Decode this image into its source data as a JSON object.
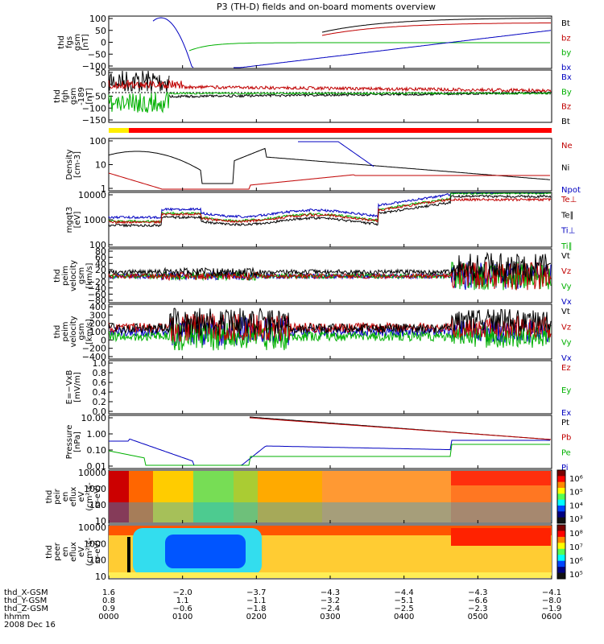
{
  "chart_data": {
    "type": "line",
    "title": "P3 (TH-D) fields and on-board moments overview",
    "panels": [
      {
        "id": "fgs",
        "ylabel_lines": [
          "thd",
          "fgs",
          "gsm",
          "[nT]"
        ],
        "ylim": [
          -100,
          100
        ],
        "yticks": [
          "100",
          "50",
          "0",
          "−50",
          "−100"
        ],
        "legend": [
          {
            "label": "Bt",
            "color": "#000000"
          },
          {
            "label": "bz",
            "color": "#c00000"
          },
          {
            "label": "by",
            "color": "#00b000"
          },
          {
            "label": "bx",
            "color": "#0000c0"
          }
        ]
      },
      {
        "id": "fgh",
        "ylabel_lines": [
          "thd",
          "fgh",
          "gsm",
          "-189",
          "[nT]"
        ],
        "ylim": [
          -175,
          50
        ],
        "yticks": [
          "50",
          "0",
          "−50",
          "−100",
          "−150"
        ],
        "legend": [
          {
            "label": "Bx",
            "color": "#0000c0"
          },
          {
            "label": "By",
            "color": "#00b000"
          },
          {
            "label": "Bz",
            "color": "#c00000"
          },
          {
            "label": "Bt",
            "color": "#000000"
          }
        ]
      },
      {
        "id": "density",
        "ylabel_lines": [
          "Density",
          "[cm-3]"
        ],
        "ylim": [
          0.1,
          100
        ],
        "log": true,
        "yticks": [
          "100",
          "10",
          "1"
        ],
        "legend": [
          {
            "label": "Ne",
            "color": "#c00000"
          },
          {
            "label": "Ni",
            "color": "#000000"
          },
          {
            "label": "Npot",
            "color": "#0000c0"
          }
        ]
      },
      {
        "id": "temp",
        "ylabel_lines": [
          "mgqt3",
          "[eV]"
        ],
        "ylim": [
          50,
          10000
        ],
        "log": true,
        "yticks": [
          "10000",
          "1000",
          "100"
        ],
        "legend": [
          {
            "label": "Te⊥",
            "color": "#c00000"
          },
          {
            "label": "Te∥",
            "color": "#000000"
          },
          {
            "label": "Ti⊥",
            "color": "#0000c0"
          },
          {
            "label": "Ti∥",
            "color": "#00b000"
          }
        ]
      },
      {
        "id": "vperp",
        "ylabel_lines": [
          "thd",
          "peim",
          "velocity",
          "gsm",
          "[km/s]"
        ],
        "ylim": [
          -80,
          80
        ],
        "yticks": [
          "80",
          "60",
          "40",
          "20",
          "0",
          "−20",
          "−40",
          "−60",
          "−80"
        ],
        "legend": [
          {
            "label": "Vt",
            "color": "#000000"
          },
          {
            "label": "Vz",
            "color": "#c00000"
          },
          {
            "label": "Vy",
            "color": "#00b000"
          },
          {
            "label": "Vx",
            "color": "#0000c0"
          }
        ]
      },
      {
        "id": "vfull",
        "ylabel_lines": [
          "thd",
          "peim",
          "velocity",
          "gsm",
          "[km/s]"
        ],
        "ylim": [
          -400,
          400
        ],
        "yticks": [
          "400",
          "300",
          "200",
          "100",
          "0",
          "−200",
          "−400"
        ],
        "legend": [
          {
            "label": "Vt",
            "color": "#000000"
          },
          {
            "label": "Vz",
            "color": "#c00000"
          },
          {
            "label": "Vy",
            "color": "#00b000"
          },
          {
            "label": "Vx",
            "color": "#0000c0"
          }
        ]
      },
      {
        "id": "efield",
        "ylabel_lines": [
          "E=−VxB",
          "[mV/m]"
        ],
        "ylim": [
          0,
          1
        ],
        "yticks": [
          "1.0",
          "0.8",
          "0.6",
          "0.4",
          "0.2",
          "0.0"
        ],
        "legend": [
          {
            "label": "Ez",
            "color": "#c00000"
          },
          {
            "label": "Ey",
            "color": "#00b000"
          },
          {
            "label": "Ex",
            "color": "#0000c0"
          }
        ]
      },
      {
        "id": "pressure",
        "ylabel_lines": [
          "Pressure",
          "[nPa]"
        ],
        "ylim": [
          0.01,
          10
        ],
        "log": true,
        "yticks": [
          "10.00",
          "1.00",
          "0.10",
          "0.01"
        ],
        "legend": [
          {
            "label": "Pt",
            "color": "#000000"
          },
          {
            "label": "Pb",
            "color": "#c00000"
          },
          {
            "label": "Pe",
            "color": "#00b000"
          },
          {
            "label": "Pi",
            "color": "#0000c0"
          }
        ]
      },
      {
        "id": "ion_spec",
        "ylabel_lines": [
          "thd",
          "peir",
          "en",
          "eflux",
          "eV",
          "(cm²-s-",
          "sr-eV)"
        ],
        "yticks": [
          "10000",
          "1000",
          "100",
          "10"
        ],
        "colorbar": [
          "10⁶",
          "10⁵",
          "10⁴",
          "10³"
        ]
      },
      {
        "id": "elec_spec",
        "ylabel_lines": [
          "thd",
          "peer",
          "en",
          "eflux",
          "eV",
          "(cm²-s-",
          "sr-eV)"
        ],
        "yticks": [
          "10000",
          "1000",
          "100",
          "10"
        ],
        "colorbar": [
          "10⁸",
          "10⁷",
          "10⁶",
          "10⁵"
        ]
      }
    ],
    "x": {
      "rows": [
        {
          "label": "thd_X-GSM",
          "values": [
            "1.6",
            "−2.0",
            "−3.7",
            "−4.3",
            "−4.4",
            "−4.3",
            "−4.1"
          ]
        },
        {
          "label": "thd_Y-GSM",
          "values": [
            "0.8",
            "1.1",
            "−1.1",
            "−3.2",
            "−5.1",
            "−6.6",
            "−8.0"
          ]
        },
        {
          "label": "thd_Z-GSM",
          "values": [
            "0.9",
            "−0.6",
            "−1.8",
            "−2.4",
            "−2.5",
            "−2.3",
            "−1.9"
          ]
        },
        {
          "label": "hhmm",
          "values": [
            "0000",
            "0100",
            "0200",
            "0300",
            "0400",
            "0500",
            "0600"
          ]
        }
      ],
      "date": "2008 Dec 16"
    }
  }
}
